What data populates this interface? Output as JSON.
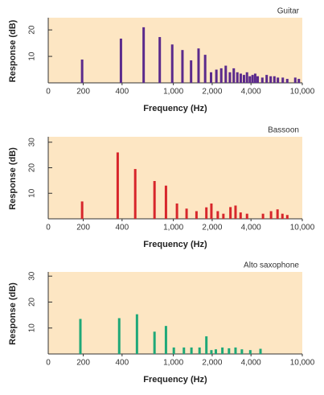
{
  "chart_data": [
    {
      "type": "bar",
      "title": "Guitar",
      "xlabel": "Frequency (Hz)",
      "ylabel": "Response (dB)",
      "color": "#5b2a8c",
      "xscale": "log",
      "x": [
        196,
        392,
        588,
        784,
        980,
        1176,
        1372,
        1568,
        1764,
        1960,
        2156,
        2352,
        2548,
        2744,
        2940,
        3136,
        3332,
        3528,
        3724,
        3920,
        4116,
        4312,
        4508,
        4900,
        5292,
        5684,
        6076,
        6468,
        7056,
        7644,
        8820,
        9408
      ],
      "values": [
        8.8,
        16.7,
        21,
        17.3,
        14.5,
        12.4,
        8.5,
        13,
        10.6,
        4,
        5,
        5.5,
        6.5,
        4,
        5.5,
        4,
        3.5,
        3,
        4,
        2.5,
        3,
        3.5,
        2.5,
        2,
        3,
        2.5,
        2.5,
        2,
        2,
        1.5,
        2,
        1.5
      ],
      "xlim": [
        107,
        10000
      ],
      "x_origin_label": "0",
      "xticks": [
        200,
        400,
        {
          "value": 1000,
          "label": "1,000"
        },
        {
          "value": 2000,
          "label": "2,000"
        },
        {
          "value": 4000,
          "label": "4,000"
        },
        {
          "value": 10000,
          "label": "10,000"
        }
      ],
      "ylim": [
        0,
        24
      ],
      "yticks": [
        10,
        20
      ]
    },
    {
      "type": "bar",
      "title": "Bassoon",
      "xlabel": "Frequency (Hz)",
      "ylabel": "Response (dB)",
      "color": "#d7262b",
      "xscale": "log",
      "x": [
        196,
        370,
        506,
        714,
        876,
        1066,
        1266,
        1511,
        1803,
        1972,
        2210,
        2443,
        2772,
        3035,
        3323,
        3726,
        4957,
        5723,
        6425,
        7012,
        7650
      ],
      "values": [
        6.8,
        26,
        19.5,
        14.8,
        13,
        6,
        4,
        3,
        4.5,
        6,
        3,
        2,
        4.6,
        5.2,
        2.5,
        2,
        2,
        3,
        3.7,
        2,
        1.5
      ],
      "xlim": [
        107,
        10000
      ],
      "x_origin_label": "0",
      "xticks": [
        200,
        400,
        {
          "value": 1000,
          "label": "1,000"
        },
        {
          "value": 2000,
          "label": "2,000"
        },
        {
          "value": 4000,
          "label": "4,000"
        },
        {
          "value": 10000,
          "label": "10,000"
        }
      ],
      "ylim": [
        0,
        31.5
      ],
      "yticks": [
        10,
        20,
        30
      ]
    },
    {
      "type": "bar",
      "title": "Alto saxophone",
      "xlabel": "Frequency (Hz)",
      "ylabel": "Response (dB)",
      "color": "#1fa878",
      "xscale": "log",
      "x": [
        190,
        380,
        522,
        714,
        876,
        1008,
        1207,
        1381,
        1596,
        1803,
        1972,
        2135,
        2400,
        2700,
        3035,
        3400,
        3950,
        4740
      ],
      "values": [
        13.5,
        13.8,
        15.3,
        8.6,
        10.8,
        2.5,
        2.5,
        2.5,
        2.5,
        6.8,
        1.5,
        1.8,
        2.5,
        2.2,
        2.5,
        1.8,
        1.5,
        2
      ],
      "xlim": [
        107,
        10000
      ],
      "x_origin_label": "0",
      "xticks": [
        200,
        400,
        {
          "value": 1000,
          "label": "1,000"
        },
        {
          "value": 2000,
          "label": "2,000"
        },
        {
          "value": 4000,
          "label": "4,000"
        },
        {
          "value": 10000,
          "label": "10,000"
        }
      ],
      "ylim": [
        0,
        31
      ],
      "yticks": [
        10,
        20,
        30
      ]
    }
  ]
}
